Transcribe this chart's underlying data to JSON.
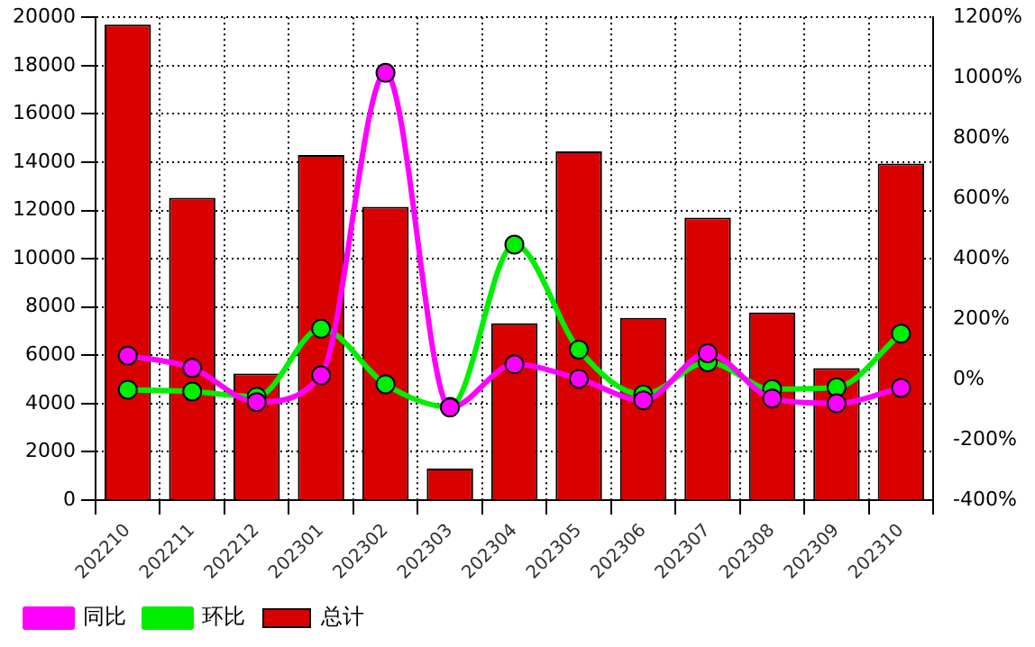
{
  "chart_data": {
    "type": "bar",
    "categories": [
      "202210",
      "202211",
      "202212",
      "202301",
      "202302",
      "202303",
      "202304",
      "202305",
      "202306",
      "202307",
      "202308",
      "202309",
      "202310"
    ],
    "series": [
      {
        "name": "同比",
        "type": "line",
        "axis": "y2",
        "color": "#ff00ff",
        "values": [
          79,
          38,
          -75,
          14,
          1016,
          -93,
          50,
          2,
          -69,
          87,
          -63,
          -79,
          -28
        ]
      },
      {
        "name": "环比",
        "type": "line",
        "axis": "y2",
        "color": "#00ee00",
        "values": [
          -34,
          -40,
          -57,
          168,
          -16,
          -91,
          447,
          99,
          -50,
          57,
          -32,
          -26,
          152
        ]
      },
      {
        "name": "总计",
        "color": "#d90000",
        "values": [
          19700,
          12520,
          5250,
          14300,
          12150,
          1310,
          7330,
          14450,
          7550,
          11700,
          7770,
          5470,
          13940
        ]
      }
    ],
    "ylim": [
      0,
      20000
    ],
    "yticks": [
      0,
      2000,
      4000,
      6000,
      8000,
      10000,
      12000,
      14000,
      16000,
      18000,
      20000
    ],
    "y2lim": [
      -400,
      1200
    ],
    "y2ticks": [
      {
        "value": -400,
        "label": "-400%"
      },
      {
        "value": -200,
        "label": "-200%"
      },
      {
        "value": 0,
        "label": "0%"
      },
      {
        "value": 200,
        "label": "200%"
      },
      {
        "value": 400,
        "label": "400%"
      },
      {
        "value": 600,
        "label": "600%"
      },
      {
        "value": 800,
        "label": "800%"
      },
      {
        "value": 1000,
        "label": "1000%"
      },
      {
        "value": 1200,
        "label": "1200%"
      }
    ],
    "grid": true,
    "legend": "bottom left",
    "marker": "circle",
    "line_style": "solid"
  }
}
